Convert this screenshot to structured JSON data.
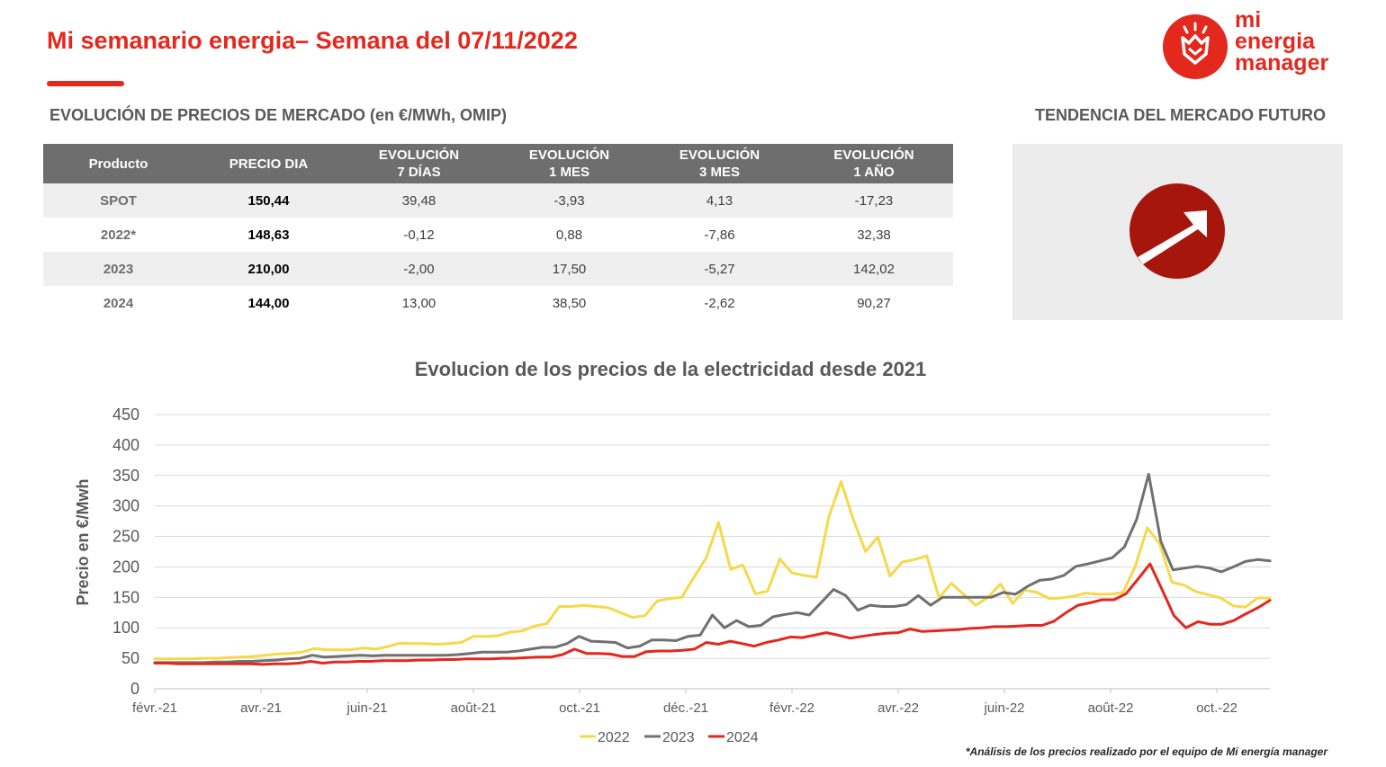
{
  "page": {
    "title": "Mi semanario energia– Semana del 07/11/2022",
    "footnote": "*Análisis de los precios realizado por el equipo de Mi energía manager"
  },
  "brand": {
    "logo_lines": [
      "mi",
      "energia",
      "manager"
    ],
    "color": "#e3281e"
  },
  "market_section": {
    "heading": "EVOLUCIÓN DE PRECIOS DE MERCADO (en €/MWh, OMIP)",
    "columns": [
      [
        "Producto"
      ],
      [
        "PRECIO DIA"
      ],
      [
        "EVOLUCIÓN",
        "7 DÍAS"
      ],
      [
        "EVOLUCIÓN",
        "1 MES"
      ],
      [
        "EVOLUCIÓN",
        "3 MES"
      ],
      [
        "EVOLUCIÓN",
        "1 AÑO"
      ]
    ],
    "rows": [
      [
        "SPOT",
        "150,44",
        "39,48",
        "-3,93",
        "4,13",
        "-17,23"
      ],
      [
        "2022*",
        "148,63",
        "-0,12",
        "0,88",
        "-7,86",
        "32,38"
      ],
      [
        "2023",
        "210,00",
        "-2,00",
        "17,50",
        "-5,27",
        "142,02"
      ],
      [
        "2024",
        "144,00",
        "13,00",
        "38,50",
        "-2,62",
        "90,27"
      ]
    ]
  },
  "trend_section": {
    "heading": "TENDENCIA DEL MERCADO FUTURO",
    "icon": "trend-up-arrow-icon",
    "direction": "up",
    "colors": {
      "circle": "#a6160d",
      "arrow": "#ffffff",
      "panel": "#ececec"
    }
  },
  "chart_data": {
    "type": "line",
    "title": "Evolucion de los precios de la electricidad desde 2021",
    "ylabel": "Precio en €/Mwh",
    "xlabel": "",
    "ylim": [
      0,
      450
    ],
    "yticks": [
      0,
      50,
      100,
      150,
      200,
      250,
      300,
      350,
      400,
      450
    ],
    "x_tick_labels": [
      "févr.-21",
      "avr.-21",
      "juin-21",
      "août-21",
      "oct.-21",
      "déc.-21",
      "févr.-22",
      "avr.-22",
      "juin-22",
      "août-22",
      "oct.-22"
    ],
    "x_range": [
      "févr.-21",
      "nov.-22"
    ],
    "grid": true,
    "legend_position": "bottom",
    "series": [
      {
        "name": "2022",
        "color": "#f5d94a",
        "values": [
          49,
          49,
          49,
          49,
          50,
          50,
          51,
          52,
          53,
          55,
          57,
          58,
          60,
          66,
          64,
          64,
          64,
          67,
          65,
          69,
          75,
          74,
          74,
          73,
          74,
          76,
          86,
          86,
          87,
          93,
          95,
          103,
          107,
          135,
          135,
          137,
          135,
          133,
          125,
          117,
          120,
          144,
          148,
          150,
          183,
          215,
          273,
          196,
          203,
          156,
          160,
          213,
          190,
          186,
          183,
          281,
          340,
          278,
          225,
          249,
          185,
          208,
          212,
          218,
          149,
          173,
          155,
          137,
          150,
          172,
          140,
          162,
          158,
          148,
          149,
          152,
          157,
          155,
          155,
          158,
          200,
          264,
          238,
          175,
          170,
          159,
          154,
          149,
          136,
          134,
          149,
          149
        ]
      },
      {
        "name": "2023",
        "color": "#707070",
        "values": [
          43,
          43,
          43,
          43,
          43,
          44,
          44,
          45,
          45,
          46,
          47,
          49,
          50,
          55,
          52,
          53,
          54,
          55,
          54,
          55,
          55,
          55,
          55,
          55,
          55,
          56,
          58,
          60,
          60,
          60,
          62,
          65,
          68,
          68,
          74,
          86,
          78,
          77,
          76,
          67,
          70,
          80,
          80,
          79,
          86,
          88,
          121,
          100,
          112,
          102,
          104,
          118,
          122,
          125,
          121,
          142,
          163,
          153,
          129,
          137,
          135,
          135,
          138,
          153,
          137,
          150,
          150,
          150,
          150,
          150,
          158,
          155,
          168,
          178,
          180,
          186,
          201,
          205,
          210,
          215,
          233,
          278,
          352,
          242,
          195,
          198,
          201,
          198,
          192,
          200,
          209,
          212,
          210
        ]
      },
      {
        "name": "2024",
        "color": "#e3281e",
        "values": [
          42,
          42,
          41,
          41,
          41,
          41,
          41,
          41,
          41,
          40,
          41,
          41,
          42,
          45,
          42,
          44,
          44,
          45,
          45,
          46,
          46,
          46,
          47,
          47,
          48,
          48,
          49,
          49,
          49,
          50,
          50,
          51,
          52,
          52,
          56,
          65,
          58,
          58,
          57,
          53,
          53,
          61,
          62,
          62,
          63,
          65,
          76,
          73,
          78,
          74,
          70,
          76,
          80,
          85,
          84,
          88,
          92,
          88,
          83,
          86,
          89,
          91,
          92,
          98,
          94,
          95,
          96,
          97,
          99,
          100,
          102,
          102,
          103,
          104,
          104,
          111,
          125,
          137,
          141,
          146,
          146,
          156,
          180,
          205,
          163,
          120,
          100,
          110,
          106,
          106,
          112,
          123,
          133,
          145
        ]
      }
    ]
  }
}
